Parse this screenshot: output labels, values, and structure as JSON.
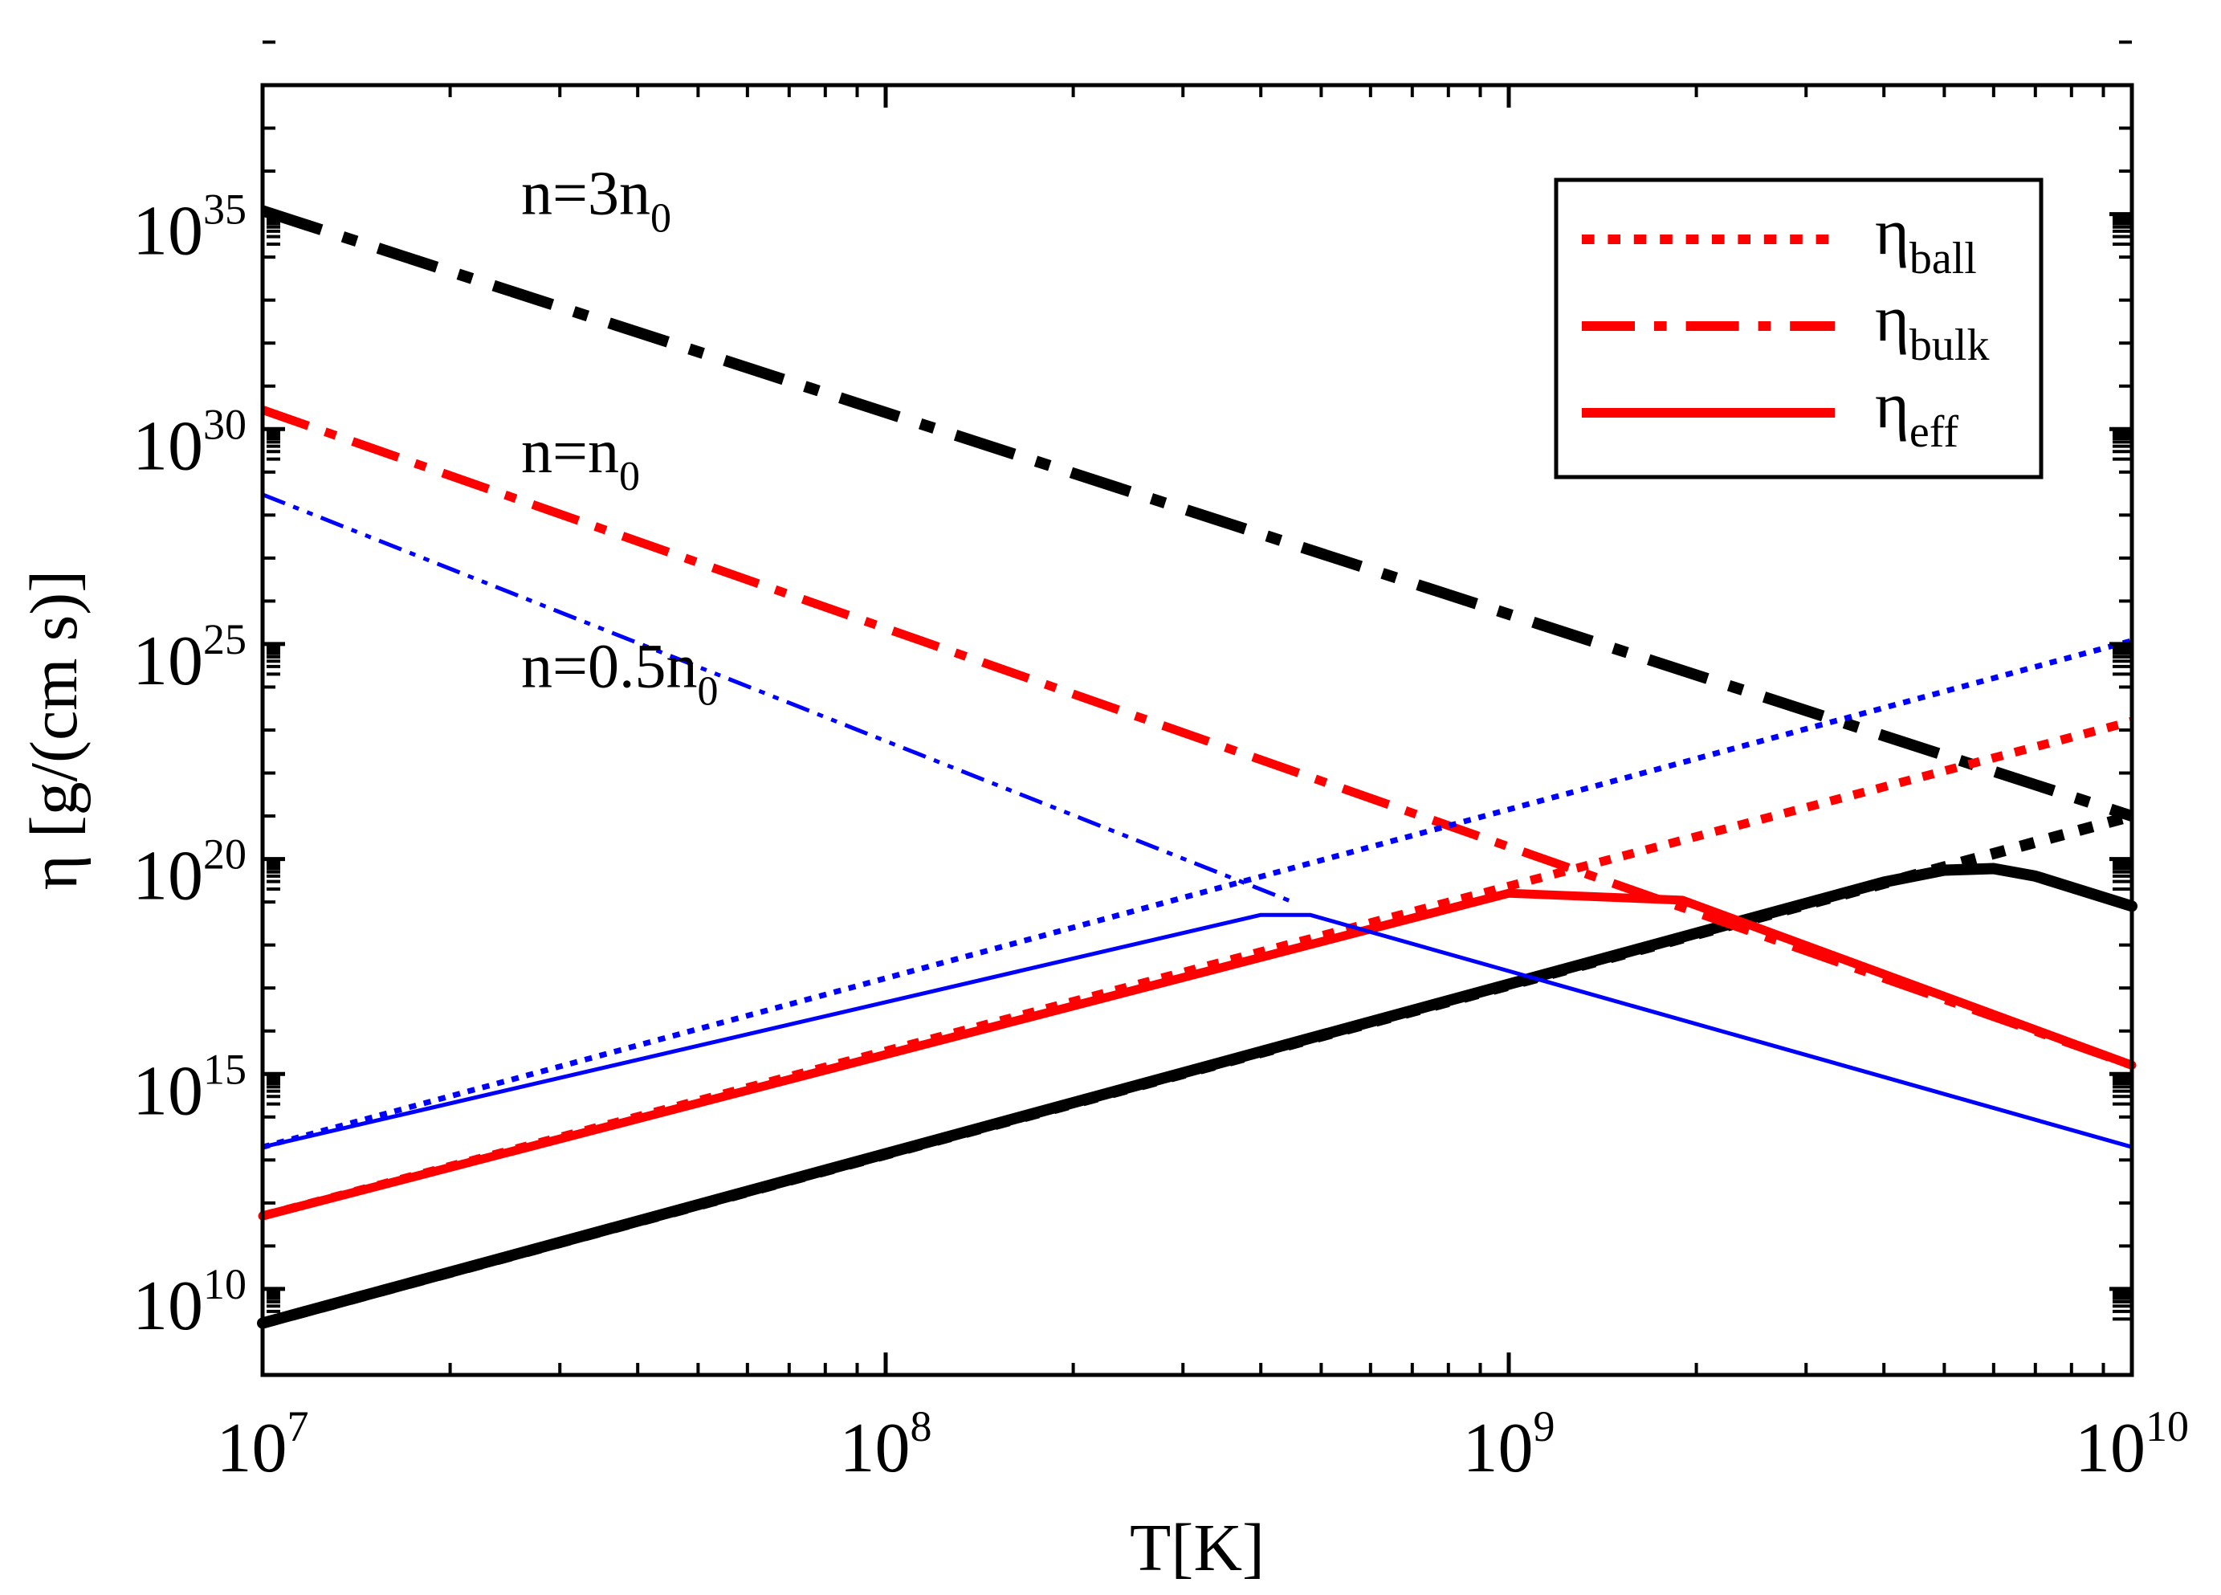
{
  "chart_data": {
    "type": "line",
    "xscale": "log",
    "yscale": "log",
    "xlim": [
      10000000,
      10000000000
    ],
    "ylim": [
      100000000.0,
      1e+38
    ],
    "xlabel": "T[K]",
    "ylabel": "η [g/(cm s)]",
    "x_ticks": [
      {
        "base": "10",
        "exp": "7",
        "value": 10000000
      },
      {
        "base": "10",
        "exp": "8",
        "value": 100000000
      },
      {
        "base": "10",
        "exp": "9",
        "value": 1000000000
      },
      {
        "base": "10",
        "exp": "10",
        "value": 10000000000
      }
    ],
    "y_ticks": [
      {
        "base": "10",
        "exp": "10",
        "value": 10000000000.0
      },
      {
        "base": "10",
        "exp": "15",
        "value": 1000000000000000.0
      },
      {
        "base": "10",
        "exp": "20",
        "value": 1e+20
      },
      {
        "base": "10",
        "exp": "25",
        "value": 1e+25
      },
      {
        "base": "10",
        "exp": "30",
        "value": 1e+30
      },
      {
        "base": "10",
        "exp": "35",
        "value": 1e+35
      }
    ],
    "legend": {
      "position": "top-right",
      "entries": [
        {
          "symbol": "η",
          "sub": "ball",
          "style": "dotted",
          "color": "#ff0000"
        },
        {
          "symbol": "η",
          "sub": "bulk",
          "style": "dash-dot",
          "color": "#ff0000"
        },
        {
          "symbol": "η",
          "sub": "eff",
          "style": "solid",
          "color": "#ff0000"
        }
      ]
    },
    "annotations": [
      {
        "text": "n=3n",
        "sub": "0",
        "x": 26000000,
        "y": 1e+35
      },
      {
        "text": "n=n",
        "sub": "0",
        "x": 26000000,
        "y": 1e+29
      },
      {
        "text": "n=0.5n",
        "sub": "0",
        "x": 26000000,
        "y": 1e+24
      }
    ],
    "series": [
      {
        "name": "ball n=3n0",
        "group": "n=3n0",
        "kind": "ball",
        "color": "#000000",
        "style": "dotted",
        "width": 14,
        "x": [
          10000000,
          10000000000
        ],
        "y": [
          1600000000.0,
          1e+21
        ]
      },
      {
        "name": "bulk n=3n0",
        "group": "n=3n0",
        "kind": "bulk",
        "color": "#000000",
        "style": "dash-dot",
        "width": 14,
        "x": [
          10000000,
          10000000000
        ],
        "y": [
          1.2e+35,
          1e+21
        ]
      },
      {
        "name": "eff n=3n0",
        "group": "n=3n0",
        "kind": "eff",
        "color": "#000000",
        "style": "solid",
        "width": 14,
        "x": [
          10000000,
          4000000000,
          5000000000,
          6000000000,
          7000000000,
          10000000000
        ],
        "y": [
          1600000000.0,
          2.9e+19,
          5.5e+19,
          6e+19,
          4e+19,
          8e+18
        ]
      },
      {
        "name": "ball n=n0",
        "group": "n=n0",
        "kind": "ball",
        "color": "#ff0000",
        "style": "dotted",
        "width": 11,
        "x": [
          10000000,
          10000000000
        ],
        "y": [
          500000000000.0,
          1.6e+23
        ]
      },
      {
        "name": "bulk n=n0",
        "group": "n=n0",
        "kind": "bulk",
        "color": "#ff0000",
        "style": "dash-dot",
        "width": 11,
        "x": [
          10000000,
          10000000000
        ],
        "y": [
          2.8e+30,
          1600000000000000.0
        ]
      },
      {
        "name": "eff n=n0",
        "group": "n=n0",
        "kind": "eff",
        "color": "#ff0000",
        "style": "solid",
        "width": 11,
        "x": [
          10000000,
          1000000000,
          1900000000,
          10000000000
        ],
        "y": [
          500000000000.0,
          1.6e+19,
          1.1e+19,
          1600000000000000.0
        ]
      },
      {
        "name": "ball n=0.5n0",
        "group": "n=0.5n0",
        "kind": "ball",
        "color": "#0000ff",
        "style": "dotted",
        "width": 7,
        "x": [
          10000000,
          10000000000
        ],
        "y": [
          20000000000000.0,
          1.2e+25
        ]
      },
      {
        "name": "bulk n=0.5n0",
        "group": "n=0.5n0",
        "kind": "bulk",
        "color": "#0000ff",
        "style": "dash-dot-dot",
        "width": 5,
        "x": [
          10000000,
          450000000
        ],
        "y": [
          3e+28,
          1e+19
        ]
      },
      {
        "name": "eff n=0.5n0",
        "group": "n=0.5n0",
        "kind": "eff",
        "color": "#0000ff",
        "style": "solid",
        "width": 5,
        "x": [
          10000000,
          400000000,
          480000000,
          10000000000
        ],
        "y": [
          20000000000000.0,
          5e+18,
          5e+18,
          20000000000000.0
        ]
      }
    ]
  }
}
